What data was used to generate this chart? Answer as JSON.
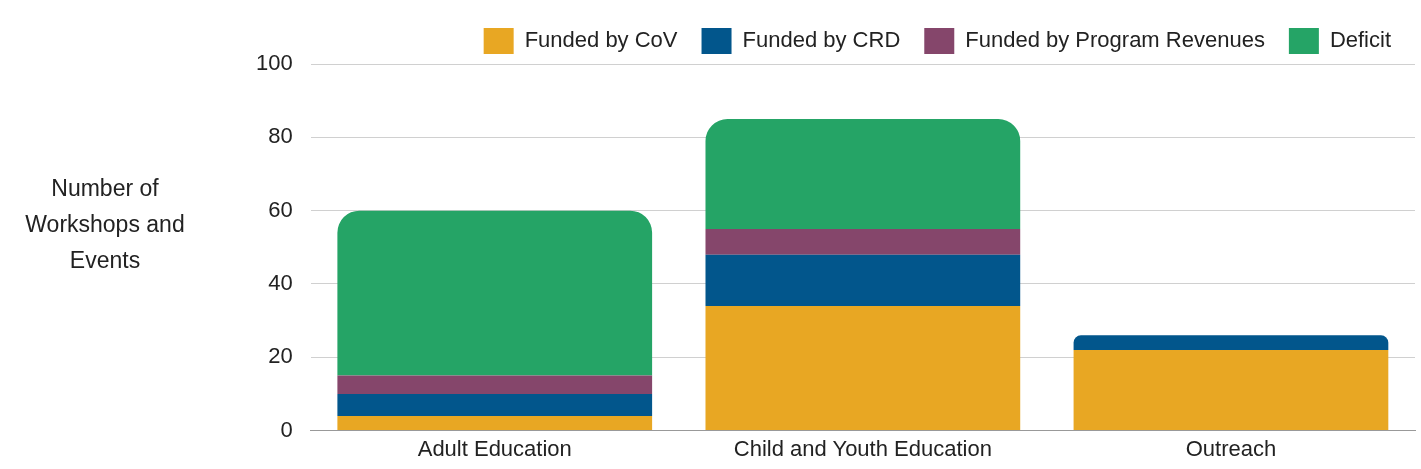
{
  "chart_data": {
    "type": "bar",
    "stacked": true,
    "ylabel": "Number of Workshops and Events",
    "categories": [
      "Adult Education",
      "Child and Youth Education",
      "Outreach"
    ],
    "series": [
      {
        "name": "Funded by CoV",
        "color": "#e8a723",
        "values": [
          4,
          34,
          22
        ]
      },
      {
        "name": "Funded by CRD",
        "color": "#02568c",
        "values": [
          6,
          14,
          4
        ]
      },
      {
        "name": "Funded by Program Revenues",
        "color": "#85466b",
        "values": [
          5,
          7,
          0
        ]
      },
      {
        "name": "Deficit",
        "color": "#25a466",
        "values": [
          45,
          30,
          0
        ]
      }
    ],
    "ylim": [
      0,
      100
    ],
    "yticks": [
      0,
      20,
      40,
      60,
      80,
      100
    ],
    "grid": "y",
    "legend": "top right"
  }
}
